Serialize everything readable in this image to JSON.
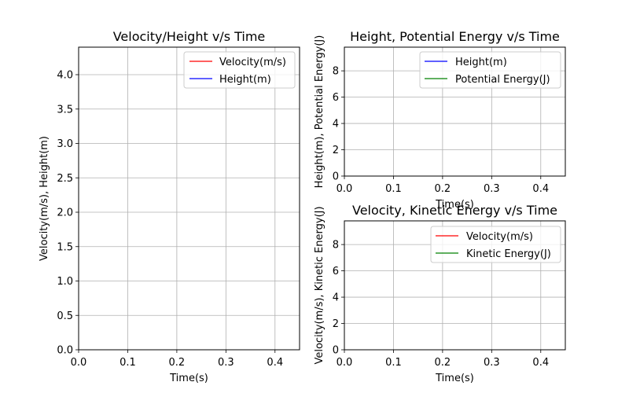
{
  "chart_data": [
    {
      "id": "left",
      "type": "line",
      "title": "Velocity/Height v/s Time",
      "xlabel": "Time(s)",
      "ylabel": "Velocity(m/s), Height(m)",
      "xlim": [
        0.0,
        0.45
      ],
      "ylim": [
        0.0,
        4.4
      ],
      "xticks": [
        "0.0",
        "0.1",
        "0.2",
        "0.3",
        "0.4"
      ],
      "xtick_values": [
        0.0,
        0.1,
        0.2,
        0.3,
        0.4
      ],
      "yticks": [
        "0.0",
        "0.5",
        "1.0",
        "1.5",
        "2.0",
        "2.5",
        "3.0",
        "3.5",
        "4.0"
      ],
      "ytick_values": [
        0.0,
        0.5,
        1.0,
        1.5,
        2.0,
        2.5,
        3.0,
        3.5,
        4.0
      ],
      "grid": true,
      "legend_position": "top-right",
      "series": [
        {
          "name": "Velocity(m/s)",
          "color": "#ff0000",
          "x": [],
          "values": []
        },
        {
          "name": "Height(m)",
          "color": "#0000ff",
          "x": [],
          "values": []
        }
      ]
    },
    {
      "id": "top-right",
      "type": "line",
      "title": "Height, Potential Energy v/s Time",
      "xlabel": "Time(s)",
      "ylabel": "Height(m), Potential Energy(J)",
      "xlim": [
        0.0,
        0.45
      ],
      "ylim": [
        0.0,
        9.8
      ],
      "xticks": [
        "0.0",
        "0.1",
        "0.2",
        "0.3",
        "0.4"
      ],
      "xtick_values": [
        0.0,
        0.1,
        0.2,
        0.3,
        0.4
      ],
      "yticks": [
        "0",
        "2",
        "4",
        "6",
        "8"
      ],
      "ytick_values": [
        0,
        2,
        4,
        6,
        8
      ],
      "grid": true,
      "legend_position": "top-right",
      "series": [
        {
          "name": "Height(m)",
          "color": "#0000ff",
          "x": [],
          "values": []
        },
        {
          "name": "Potential Energy(J)",
          "color": "#008000",
          "x": [],
          "values": []
        }
      ]
    },
    {
      "id": "bottom-right",
      "type": "line",
      "title": "Velocity, Kinetic Energy v/s Time",
      "xlabel": "Time(s)",
      "ylabel": "Velocity(m/s), Kinetic Energy(J)",
      "xlim": [
        0.0,
        0.45
      ],
      "ylim": [
        0.0,
        9.8
      ],
      "xticks": [
        "0.0",
        "0.1",
        "0.2",
        "0.3",
        "0.4"
      ],
      "xtick_values": [
        0.0,
        0.1,
        0.2,
        0.3,
        0.4
      ],
      "yticks": [
        "0",
        "2",
        "4",
        "6",
        "8"
      ],
      "ytick_values": [
        0,
        2,
        4,
        6,
        8
      ],
      "grid": true,
      "legend_position": "top-right",
      "series": [
        {
          "name": "Velocity(m/s)",
          "color": "#ff0000",
          "x": [],
          "values": []
        },
        {
          "name": "Kinetic Energy(J)",
          "color": "#008000",
          "x": [],
          "values": []
        }
      ]
    }
  ]
}
